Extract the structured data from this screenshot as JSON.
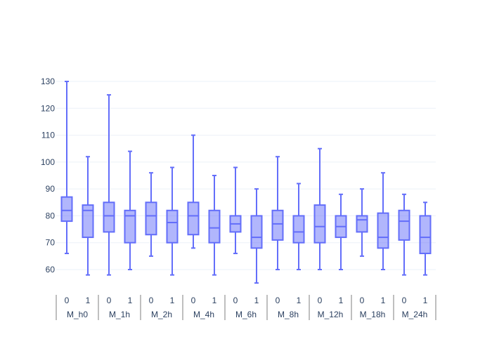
{
  "chart_data": {
    "type": "box",
    "title": "",
    "xlabel": "",
    "ylabel": "",
    "ylim": [
      53,
      130
    ],
    "yticks": [
      60,
      70,
      80,
      90,
      100,
      110,
      120,
      130
    ],
    "grid": true,
    "colors": {
      "box_line": "#636efa",
      "box_fill": "#636efa",
      "grid": "#ebf0f8",
      "text": "#2a3f5f",
      "divider": "#7f7f7f"
    },
    "groups": [
      "M_h0",
      "M_1h",
      "M_2h",
      "M_4h",
      "M_6h",
      "M_8h",
      "M_12h",
      "M_18h",
      "M_24h"
    ],
    "subcategories": [
      "0",
      "1"
    ],
    "boxes": [
      {
        "group": "M_h0",
        "sub": "0",
        "min": 66,
        "q1": 78,
        "median": 82,
        "q3": 87,
        "max": 130
      },
      {
        "group": "M_h0",
        "sub": "1",
        "min": 58,
        "q1": 72,
        "median": 82,
        "q3": 84,
        "max": 102
      },
      {
        "group": "M_1h",
        "sub": "0",
        "min": 58,
        "q1": 74,
        "median": 80,
        "q3": 85,
        "max": 125
      },
      {
        "group": "M_1h",
        "sub": "1",
        "min": 60,
        "q1": 70,
        "median": 80,
        "q3": 82,
        "max": 104
      },
      {
        "group": "M_2h",
        "sub": "0",
        "min": 65,
        "q1": 73,
        "median": 80,
        "q3": 85,
        "max": 96
      },
      {
        "group": "M_2h",
        "sub": "1",
        "min": 58,
        "q1": 70,
        "median": 77.5,
        "q3": 82,
        "max": 98
      },
      {
        "group": "M_4h",
        "sub": "0",
        "min": 68,
        "q1": 73,
        "median": 80,
        "q3": 85,
        "max": 110
      },
      {
        "group": "M_4h",
        "sub": "1",
        "min": 58,
        "q1": 70,
        "median": 75.5,
        "q3": 82,
        "max": 95
      },
      {
        "group": "M_6h",
        "sub": "0",
        "min": 66,
        "q1": 74,
        "median": 77,
        "q3": 80,
        "max": 98
      },
      {
        "group": "M_6h",
        "sub": "1",
        "min": 55,
        "q1": 68,
        "median": 72,
        "q3": 80,
        "max": 90
      },
      {
        "group": "M_8h",
        "sub": "0",
        "min": 60,
        "q1": 71,
        "median": 77,
        "q3": 82,
        "max": 102
      },
      {
        "group": "M_8h",
        "sub": "1",
        "min": 60,
        "q1": 70,
        "median": 74,
        "q3": 80,
        "max": 92
      },
      {
        "group": "M_12h",
        "sub": "0",
        "min": 60,
        "q1": 70,
        "median": 76,
        "q3": 84,
        "max": 105
      },
      {
        "group": "M_12h",
        "sub": "1",
        "min": 60,
        "q1": 72,
        "median": 76,
        "q3": 80,
        "max": 88
      },
      {
        "group": "M_18h",
        "sub": "0",
        "min": 65,
        "q1": 74,
        "median": 78.5,
        "q3": 80,
        "max": 90
      },
      {
        "group": "M_18h",
        "sub": "1",
        "min": 60,
        "q1": 68,
        "median": 72,
        "q3": 81,
        "max": 96
      },
      {
        "group": "M_24h",
        "sub": "0",
        "min": 58,
        "q1": 71,
        "median": 78,
        "q3": 82,
        "max": 88
      },
      {
        "group": "M_24h",
        "sub": "1",
        "min": 58,
        "q1": 66,
        "median": 72,
        "q3": 80,
        "max": 85
      }
    ]
  }
}
